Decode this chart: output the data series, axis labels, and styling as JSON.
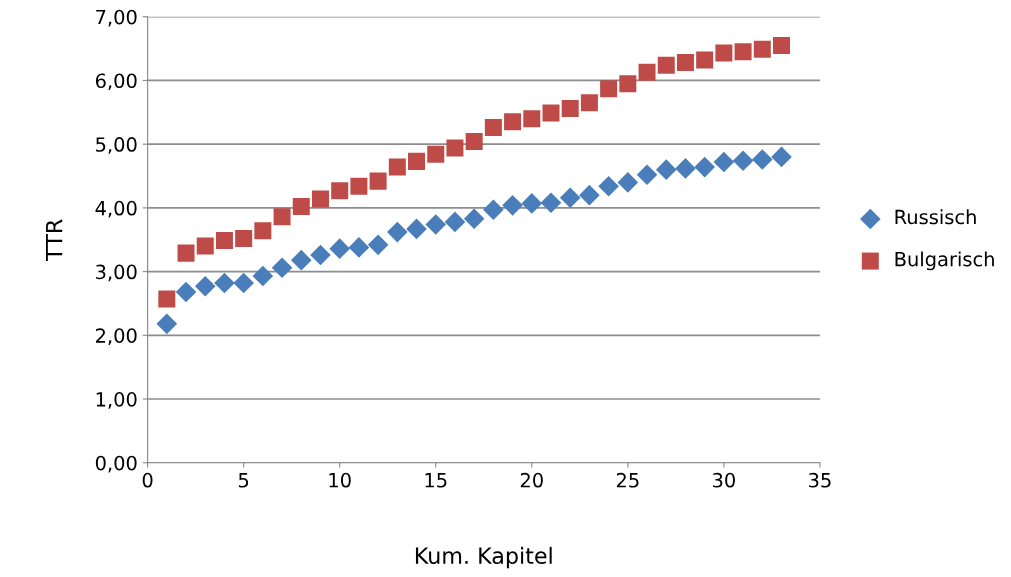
{
  "chart_data": {
    "type": "scatter",
    "xlabel": "Kum. Kapitel",
    "ylabel": "TTR",
    "x": [
      1,
      2,
      3,
      4,
      5,
      6,
      7,
      8,
      9,
      10,
      11,
      12,
      13,
      14,
      15,
      16,
      17,
      18,
      19,
      20,
      21,
      22,
      23,
      24,
      25,
      26,
      27,
      28,
      29,
      30,
      31,
      32,
      33
    ],
    "series": [
      {
        "name": "Russisch",
        "color": "#4a7ebb",
        "marker": "diamond",
        "values": [
          2.18,
          2.68,
          2.77,
          2.82,
          2.82,
          2.93,
          3.06,
          3.18,
          3.26,
          3.36,
          3.38,
          3.42,
          3.62,
          3.67,
          3.74,
          3.78,
          3.83,
          3.97,
          4.04,
          4.07,
          4.08,
          4.16,
          4.2,
          4.34,
          4.4,
          4.52,
          4.6,
          4.62,
          4.64,
          4.72,
          4.74,
          4.76,
          4.8
        ]
      },
      {
        "name": "Bulgarisch",
        "color": "#be4b48",
        "marker": "square",
        "values": [
          2.57,
          3.29,
          3.4,
          3.49,
          3.52,
          3.64,
          3.86,
          4.02,
          4.14,
          4.27,
          4.34,
          4.42,
          4.64,
          4.73,
          4.84,
          4.94,
          5.04,
          5.26,
          5.35,
          5.4,
          5.49,
          5.56,
          5.65,
          5.87,
          5.95,
          6.13,
          6.24,
          6.28,
          6.32,
          6.43,
          6.45,
          6.49,
          6.55
        ]
      }
    ],
    "xlim": [
      0,
      35
    ],
    "xticks": [
      0,
      5,
      10,
      15,
      20,
      25,
      30,
      35
    ],
    "ylim": [
      0,
      7
    ],
    "yticks": [
      {
        "value": 0,
        "label": "0,00"
      },
      {
        "value": 1,
        "label": "1,00"
      },
      {
        "value": 2,
        "label": "2,00"
      },
      {
        "value": 3,
        "label": "3,00"
      },
      {
        "value": 4,
        "label": "4,00"
      },
      {
        "value": 5,
        "label": "5,00"
      },
      {
        "value": 6,
        "label": "6,00"
      },
      {
        "value": 7,
        "label": "7,00"
      }
    ],
    "grid": "y",
    "legend": "right"
  }
}
